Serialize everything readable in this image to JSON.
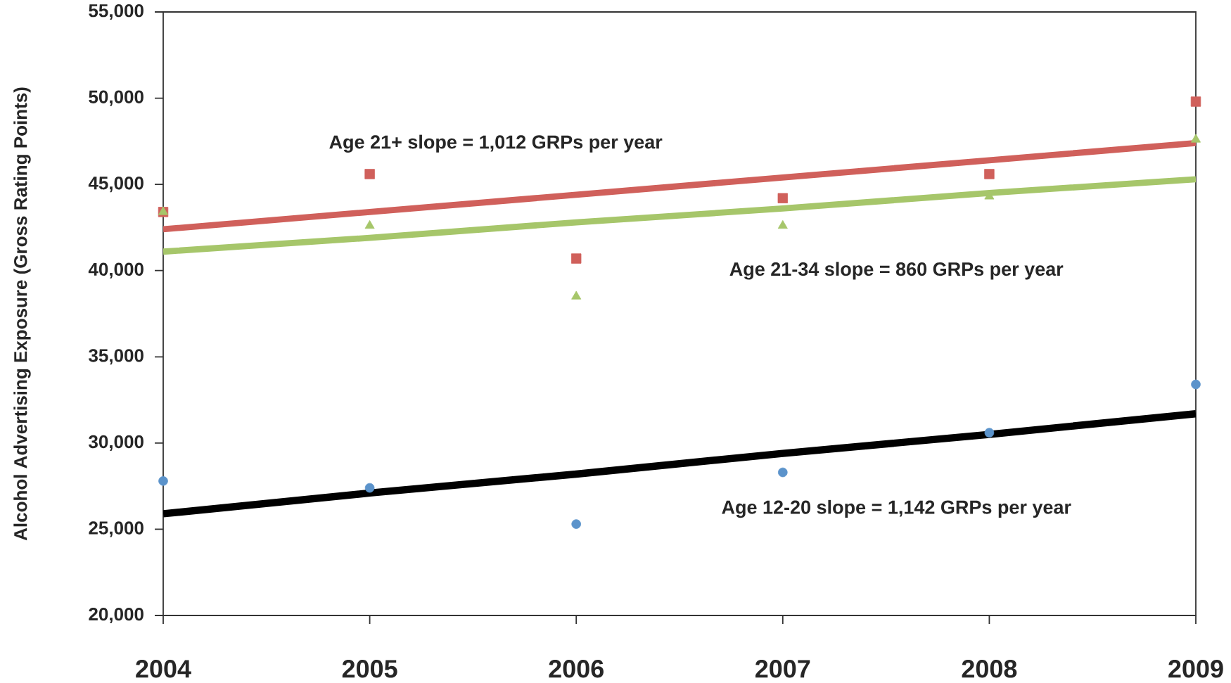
{
  "chart_data": {
    "type": "scatter",
    "ylabel": "Alcohol Advertising Exposure (Gross Rating Points)",
    "xlim": [
      2004,
      2009
    ],
    "xticks": [
      2004,
      2005,
      2006,
      2007,
      2008,
      2009
    ],
    "ylim": [
      20000,
      55000
    ],
    "yticks": [
      {
        "value": 20000,
        "label": "20,000"
      },
      {
        "value": 25000,
        "label": "25,000"
      },
      {
        "value": 30000,
        "label": "30,000"
      },
      {
        "value": 35000,
        "label": "35,000"
      },
      {
        "value": 40000,
        "label": "40,000"
      },
      {
        "value": 45000,
        "label": "45,000"
      },
      {
        "value": 50000,
        "label": "50,000"
      },
      {
        "value": 55000,
        "label": "55,000"
      }
    ],
    "x": [
      2004,
      2005,
      2006,
      2007,
      2008,
      2009
    ],
    "series": [
      {
        "type": "scatter",
        "marker": "square",
        "color": "#d0605b",
        "values": [
          43400,
          45600,
          40700,
          44200,
          45600,
          49800
        ]
      },
      {
        "type": "scatter",
        "marker": "triangle",
        "color": "#a6c66a",
        "values": [
          43400,
          42600,
          38500,
          42600,
          44300,
          47600
        ]
      },
      {
        "type": "scatter",
        "marker": "circle",
        "color": "#5b93cb",
        "values": [
          27800,
          27400,
          25300,
          28300,
          30600,
          33400
        ]
      },
      {
        "type": "line",
        "marker": "none",
        "line_style": "solid",
        "color": "#d0605b",
        "values": [
          42400,
          43400,
          44400,
          45400,
          46400,
          47400
        ]
      },
      {
        "type": "line",
        "marker": "none",
        "line_style": "solid",
        "color": "#a6c66a",
        "values": [
          41100,
          41900,
          42800,
          43600,
          44500,
          45300
        ]
      },
      {
        "type": "line",
        "marker": "none",
        "line_style": "solid",
        "color": "#000000",
        "values": [
          25900,
          27100,
          28200,
          29400,
          30500,
          31700
        ]
      }
    ],
    "annotations": [
      "Age 21+ slope = 1,012 GRPs per year",
      "Age 21-34 slope = 860 GRPs per year",
      "Age 12-20 slope = 1,142 GRPs per year"
    ]
  }
}
